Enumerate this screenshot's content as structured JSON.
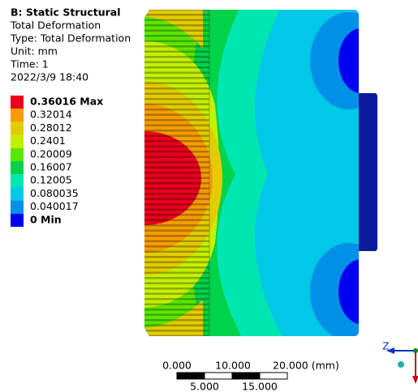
{
  "header": {
    "title": "B: Static Structural",
    "lines": [
      "Total Deformation",
      "Type: Total Deformation",
      "Unit: mm",
      "Time: 1",
      "2022/3/9 18:40"
    ]
  },
  "legend": {
    "entries": [
      {
        "label": "0.36016 Max",
        "color": "#e8001c"
      },
      {
        "label": "0.32014",
        "color": "#f59c00"
      },
      {
        "label": "0.28012",
        "color": "#e2cc00"
      },
      {
        "label": "0.2401",
        "color": "#c4f000"
      },
      {
        "label": "0.20009",
        "color": "#5ae600"
      },
      {
        "label": "0.16007",
        "color": "#00d24a"
      },
      {
        "label": "0.12005",
        "color": "#00e6b0"
      },
      {
        "label": "0.080035",
        "color": "#00c8e6"
      },
      {
        "label": "0.040017",
        "color": "#0090e8"
      },
      {
        "label": "0 Min",
        "color": "#0000f0"
      }
    ]
  },
  "scale_bar": {
    "top_labels": [
      "0.000",
      "10.000",
      "20.000 (mm)"
    ],
    "bottom_labels": [
      "5.000",
      "15.000"
    ]
  },
  "triad": {
    "axis_label": "Z"
  }
}
